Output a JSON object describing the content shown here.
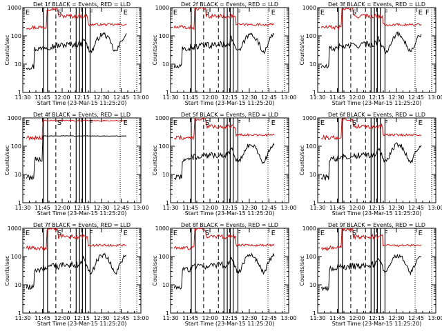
{
  "chart_data": {
    "type": "line",
    "yscale": "log",
    "ylim": [
      1,
      1000
    ],
    "ytick_labels": [
      "1",
      "10",
      "100",
      "1000"
    ],
    "xlabel": "Start Time (23-Mar-15 11:25:20)",
    "ylabel": "Counts/sec",
    "xtick_labels": [
      "11:30",
      "11:45",
      "12:00",
      "12:15",
      "12:30",
      "12:45",
      "13:00"
    ],
    "colors": {
      "events": "#000000",
      "lld": "#d01010",
      "lines": "#000000"
    },
    "panels": [
      {
        "title": "Det 1f BLACK = Events, RED = LLD",
        "markers": [
          "E",
          "S",
          "F",
          "E"
        ]
      },
      {
        "title": "Det 2f BLACK = Events, RED = LLD",
        "markers": [
          "E",
          "S",
          "F",
          "E"
        ]
      },
      {
        "title": "Det 3f BLACK = Events, RED = LLD",
        "markers": [
          "E",
          "S",
          "F",
          "F",
          "E"
        ]
      },
      {
        "title": "Det 4f BLACK = Events, RED = LLD",
        "markers": [
          "E",
          "S",
          "F",
          "E"
        ]
      },
      {
        "title": "Det 5f BLACK = Events, RED = LLD",
        "markers": [
          "E",
          "S",
          "F",
          "E"
        ]
      },
      {
        "title": "Det 6f BLACK = Events, RED = LLD",
        "markers": [
          "E",
          "S",
          "F",
          "E"
        ]
      },
      {
        "title": "Det 7f BLACK = Events, RED = LLD",
        "markers": [
          "E",
          "S",
          "F",
          "E"
        ]
      },
      {
        "title": "Det 8f BLACK = Events, RED = LLD",
        "markers": [
          "E",
          "S",
          "F",
          "E"
        ]
      },
      {
        "title": "Det 9f BLACK = Events, RED = LLD",
        "markers": [
          "E",
          "S",
          "F",
          "E"
        ]
      }
    ]
  }
}
